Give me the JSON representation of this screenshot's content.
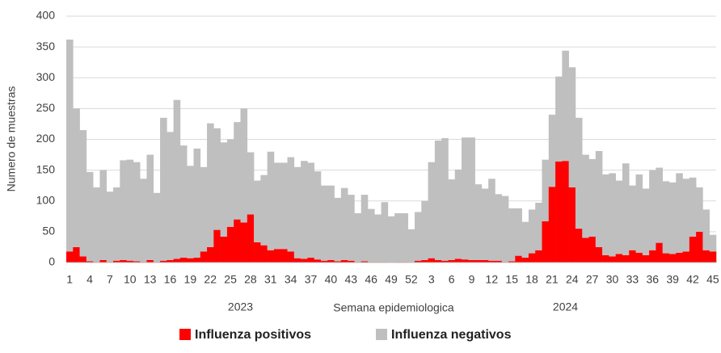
{
  "chart_data": {
    "type": "stacked_bar",
    "x_label": "Semana epidemiologica",
    "y_label": "Numero de muestras",
    "categories": [
      "1",
      null,
      null,
      "4",
      null,
      null,
      "7",
      null,
      null,
      "10",
      null,
      null,
      "13",
      null,
      null,
      "16",
      null,
      null,
      "19",
      null,
      null,
      "22",
      null,
      null,
      "25",
      null,
      null,
      "28",
      null,
      null,
      "31",
      null,
      null,
      "34",
      null,
      null,
      "37",
      null,
      null,
      "40",
      null,
      null,
      "43",
      null,
      null,
      "46",
      null,
      null,
      "49",
      null,
      null,
      "52",
      null,
      null,
      "3",
      null,
      null,
      "6",
      null,
      null,
      "9",
      null,
      null,
      "12",
      null,
      null,
      "15",
      null,
      null,
      "18",
      null,
      null,
      "21",
      null,
      null,
      "24",
      null,
      null,
      "27",
      null,
      null,
      "30",
      null,
      null,
      "33",
      null,
      null,
      "36",
      null,
      null,
      "39",
      null,
      null,
      "42",
      null,
      null,
      "45"
    ],
    "x_groups": [
      {
        "label": "2023",
        "count": 52
      },
      {
        "label": "2024",
        "count": 45
      }
    ],
    "series": [
      {
        "name": "Influenza positivos",
        "color": "#ff0000",
        "values": [
          18,
          25,
          10,
          2,
          1,
          4,
          1,
          3,
          4,
          3,
          2,
          1,
          4,
          1,
          3,
          4,
          6,
          8,
          7,
          8,
          18,
          25,
          53,
          42,
          58,
          70,
          65,
          78,
          33,
          28,
          20,
          22,
          22,
          18,
          7,
          6,
          8,
          5,
          3,
          4,
          2,
          4,
          3,
          1,
          2,
          1,
          1,
          1,
          0,
          1,
          1,
          0,
          3,
          4,
          7,
          4,
          3,
          4,
          6,
          5,
          4,
          4,
          4,
          3,
          3,
          1,
          2,
          11,
          8,
          15,
          20,
          67,
          123,
          164,
          165,
          122,
          55,
          40,
          42,
          25,
          12,
          10,
          14,
          12,
          20,
          16,
          12,
          20,
          32,
          15,
          14,
          16,
          18,
          42,
          50,
          20,
          18
        ]
      },
      {
        "name": "Influenza negativos",
        "color": "#bfbfbf",
        "values": [
          344,
          225,
          205,
          145,
          121,
          146,
          114,
          119,
          162,
          164,
          161,
          135,
          171,
          112,
          232,
          208,
          258,
          182,
          150,
          177,
          137,
          201,
          165,
          153,
          142,
          158,
          185,
          101,
          100,
          114,
          160,
          140,
          140,
          153,
          148,
          159,
          154,
          143,
          122,
          121,
          103,
          117,
          107,
          79,
          108,
          86,
          77,
          97,
          75,
          79,
          79,
          54,
          79,
          96,
          156,
          194,
          199,
          131,
          145,
          198,
          199,
          123,
          116,
          133,
          108,
          107,
          86,
          77,
          58,
          71,
          77,
          100,
          117,
          138,
          179,
          195,
          180,
          135,
          126,
          156,
          131,
          135,
          119,
          149,
          105,
          127,
          108,
          130,
          122,
          117,
          116,
          129,
          118,
          96,
          72,
          66,
          27
        ]
      }
    ],
    "ylim": [
      0,
      400
    ],
    "yticks": [
      0,
      50,
      100,
      150,
      200,
      250,
      300,
      350,
      400
    ],
    "grid": true,
    "legend": "bottom"
  }
}
